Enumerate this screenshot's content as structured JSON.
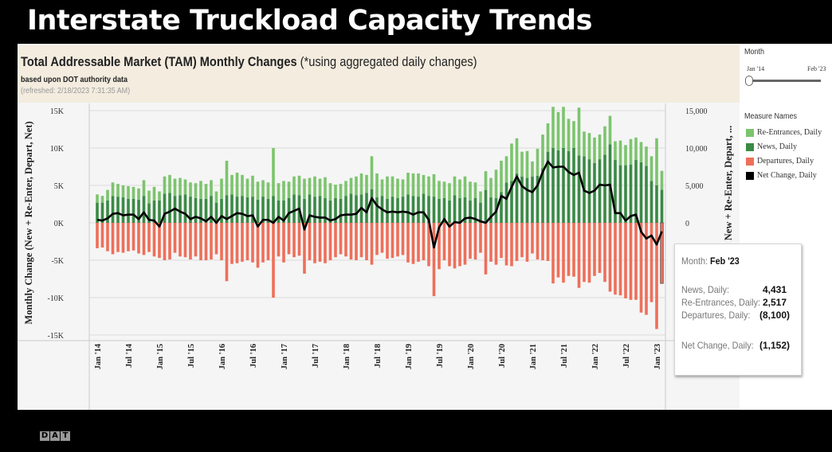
{
  "slide": {
    "title": "Interstate Truckload Capacity Trends",
    "logo": "DAT"
  },
  "header": {
    "title": "Total Addressable Market (TAM) Monthly Changes",
    "title_note": "(*using aggregated daily changes)",
    "subtitle": "based upon DOT authority data",
    "refreshed": "(refreshed: 2/18/2023 7:31:35 AM)"
  },
  "filter": {
    "label": "Month",
    "range_start": "Jan '14",
    "range_end": "Feb '23",
    "selected_fraction": [
      0,
      1
    ]
  },
  "legend": {
    "title": "Measure Names",
    "items": [
      {
        "label": "Re-Entrances, Daily",
        "color": "#7cc46e"
      },
      {
        "label": "News, Daily",
        "color": "#3a8a45"
      },
      {
        "label": "Departures, Daily",
        "color": "#ee6f5a"
      },
      {
        "label": "Net Change, Daily",
        "color": "#000000"
      }
    ]
  },
  "tooltip": {
    "month_label": "Month:",
    "month_value": "Feb '23",
    "rows": [
      {
        "label": "News, Daily:",
        "value": "4,431"
      },
      {
        "label": "Re-Entrances, Daily:",
        "value": "2,517"
      },
      {
        "label": "Departures, Daily:",
        "value": "(8,100)"
      }
    ],
    "net_label": "Net Change, Daily:",
    "net_value": "(1,152)"
  },
  "chart_data": {
    "type": "bar",
    "stacked": true,
    "x_start": "Jan '14",
    "x_end": "Feb '23",
    "x_ticks": [
      "Jan '14",
      "Jul '14",
      "Jan '15",
      "Jul '15",
      "Jan '16",
      "Jul '16",
      "Jan '17",
      "Jul '17",
      "Jan '18",
      "Jul '18",
      "Jan '19",
      "Jul '19",
      "Jan '20",
      "Jul '20",
      "Jan '21",
      "Jul '21",
      "Jan '22",
      "Jul '22",
      "Jan '23"
    ],
    "ylabel": "Monthly Change (New + Re-Enter, Depart, Net)",
    "ylabel_right": "New + Re-Enter, Depart, ...",
    "y_ticks_left": [
      "15K",
      "10K",
      "5K",
      "0K",
      "-5K",
      "-10K",
      "-15K"
    ],
    "y_ticks_right": [
      "15,000",
      "10,000",
      "5,000",
      "0"
    ],
    "ylim": [
      -15,
      15
    ],
    "y_unit": "thousands",
    "grid": true,
    "legend_position": "right",
    "series": [
      {
        "name": "News, Daily",
        "color": "#3a8a45",
        "values": [
          2.7,
          2.7,
          3.0,
          3.6,
          3.5,
          3.4,
          3.2,
          3.2,
          3.1,
          3.6,
          2.6,
          3.0,
          3.0,
          3.9,
          4.0,
          3.6,
          3.7,
          3.8,
          3.5,
          3.3,
          3.2,
          3.2,
          3.6,
          2.7,
          3.2,
          3.7,
          3.8,
          3.5,
          3.6,
          3.4,
          3.5,
          3.1,
          3.5,
          3.2,
          3.6,
          3.0,
          3.0,
          3.3,
          3.8,
          3.7,
          3.2,
          3.8,
          3.5,
          3.6,
          3.3,
          3.0,
          3.3,
          3.2,
          3.6,
          3.9,
          3.7,
          3.8,
          4.0,
          4.5,
          3.4,
          3.6,
          3.2,
          3.5,
          3.3,
          3.5,
          3.8,
          3.6,
          3.5,
          3.9,
          3.6,
          3.5,
          3.2,
          3.3,
          3.0,
          3.7,
          3.3,
          3.4,
          3.0,
          3.3,
          2.7,
          4.4,
          3.4,
          3.3,
          4.1,
          5.4,
          5.6,
          6.6,
          6.2,
          6.0,
          6.2,
          6.3,
          7.3,
          9.5,
          10.0,
          9.7,
          10.0,
          9.6,
          10.0,
          9.0,
          8.9,
          8.5,
          8.0,
          8.5,
          9.1,
          10.5,
          8.4,
          7.7,
          7.7,
          7.8,
          8.4,
          8.1,
          7.6,
          5.6,
          5.0,
          4.431
        ]
      },
      {
        "name": "Re-Entrances, Daily",
        "color": "#7cc46e",
        "values": [
          1.1,
          0.9,
          1.4,
          1.8,
          1.7,
          1.6,
          1.7,
          1.6,
          1.5,
          2.1,
          1.7,
          1.8,
          1.2,
          2.3,
          2.4,
          2.3,
          2.3,
          2.0,
          1.9,
          2.0,
          2.4,
          2.0,
          2.1,
          1.5,
          2.7,
          4.6,
          2.6,
          3.2,
          2.8,
          2.5,
          2.8,
          2.4,
          2.2,
          2.2,
          6.4,
          2.3,
          2.6,
          2.2,
          2.4,
          2.6,
          2.7,
          2.2,
          2.7,
          2.3,
          2.8,
          2.3,
          1.8,
          2.0,
          2.0,
          2.1,
          2.5,
          2.8,
          2.4,
          4.4,
          3.2,
          2.2,
          3.0,
          2.7,
          2.6,
          2.3,
          2.9,
          3.0,
          3.1,
          2.5,
          2.6,
          3.0,
          2.4,
          2.2,
          2.3,
          2.5,
          2.5,
          2.8,
          2.5,
          2.1,
          1.5,
          2.5,
          2.6,
          3.8,
          4.2,
          3.5,
          5.0,
          4.7,
          3.3,
          3.6,
          2.0,
          3.6,
          4.5,
          3.8,
          5.5,
          5.1,
          5.5,
          4.3,
          3.6,
          6.4,
          3.3,
          3.5,
          3.4,
          3.3,
          3.8,
          3.8,
          2.5,
          3.3,
          2.7,
          3.4,
          3.0,
          2.7,
          2.6,
          3.3,
          6.3,
          2.517
        ]
      },
      {
        "name": "Departures, Daily",
        "color": "#ee6f5a",
        "values": [
          -3.4,
          -3.3,
          -3.8,
          -4.2,
          -3.9,
          -4.0,
          -3.8,
          -3.7,
          -4.1,
          -4.3,
          -3.9,
          -4.5,
          -4.7,
          -5.0,
          -4.9,
          -4.0,
          -4.5,
          -4.6,
          -4.9,
          -4.5,
          -5.0,
          -5.0,
          -4.9,
          -4.2,
          -5.0,
          -7.8,
          -5.5,
          -5.4,
          -5.2,
          -5.0,
          -5.3,
          -6.0,
          -5.3,
          -5.0,
          -10.0,
          -4.5,
          -5.3,
          -4.2,
          -4.6,
          -4.4,
          -6.8,
          -5.0,
          -5.4,
          -5.2,
          -5.4,
          -5.0,
          -4.6,
          -4.2,
          -4.5,
          -4.9,
          -5.0,
          -4.6,
          -5.0,
          -5.6,
          -4.3,
          -4.0,
          -4.8,
          -4.7,
          -4.5,
          -4.3,
          -5.3,
          -5.5,
          -5.2,
          -5.0,
          -5.8,
          -9.8,
          -6.2,
          -5.0,
          -5.8,
          -6.1,
          -5.8,
          -5.6,
          -4.8,
          -4.9,
          -4.0,
          -6.9,
          -5.2,
          -5.6,
          -4.7,
          -5.7,
          -5.8,
          -5.1,
          -4.6,
          -5.2,
          -4.1,
          -4.9,
          -5.0,
          -5.1,
          -8.1,
          -7.3,
          -8.0,
          -7.1,
          -7.2,
          -8.7,
          -7.9,
          -8.0,
          -7.1,
          -6.7,
          -7.9,
          -9.2,
          -9.6,
          -9.7,
          -10.1,
          -10.3,
          -10.3,
          -12.0,
          -12.3,
          -10.6,
          -14.2,
          -8.1
        ]
      },
      {
        "name": "Net Change, Daily",
        "color": "#000000",
        "type": "line",
        "values": [
          0.4,
          0.3,
          0.6,
          1.2,
          1.3,
          1.0,
          1.1,
          1.1,
          0.5,
          1.4,
          0.4,
          0.3,
          -0.5,
          1.2,
          1.5,
          1.9,
          1.5,
          1.2,
          0.5,
          0.8,
          0.6,
          0.2,
          0.8,
          0.0,
          0.9,
          0.5,
          0.9,
          1.3,
          1.2,
          0.9,
          1.0,
          -0.5,
          0.4,
          0.4,
          0.0,
          0.8,
          0.3,
          1.3,
          1.6,
          1.9,
          -0.9,
          1.0,
          0.8,
          0.7,
          0.7,
          0.3,
          0.5,
          1.0,
          1.1,
          1.1,
          1.2,
          2.0,
          1.4,
          3.3,
          2.3,
          1.8,
          1.4,
          1.5,
          1.4,
          1.5,
          1.4,
          1.1,
          1.4,
          1.4,
          0.4,
          -3.3,
          -0.6,
          0.5,
          -0.5,
          0.1,
          0.0,
          0.6,
          0.7,
          0.5,
          0.2,
          0.0,
          0.8,
          1.5,
          3.6,
          3.2,
          4.8,
          6.2,
          4.9,
          4.4,
          4.1,
          5.0,
          6.8,
          8.2,
          7.4,
          7.5,
          7.5,
          6.8,
          6.4,
          6.7,
          4.3,
          4.0,
          4.3,
          5.1,
          5.0,
          5.1,
          1.3,
          1.3,
          0.3,
          0.9,
          1.1,
          -1.2,
          -2.1,
          -1.7,
          -2.9,
          -1.152
        ]
      }
    ]
  }
}
